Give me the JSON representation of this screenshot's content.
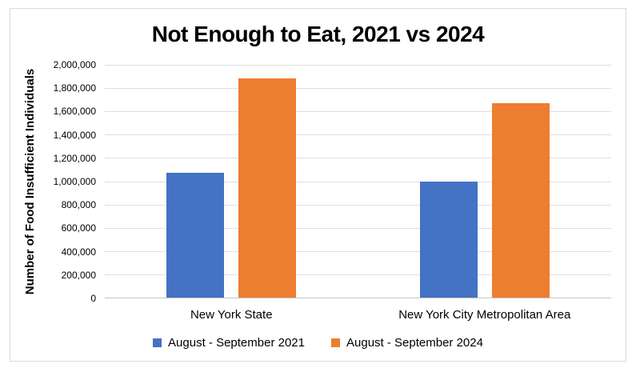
{
  "chart_data": {
    "type": "bar",
    "title": "Not Enough to Eat, 2021 vs 2024",
    "xlabel": "",
    "ylabel": "Number of Food Insufficient Individuals",
    "categories": [
      "New York State",
      "New York City Metropolitan Area"
    ],
    "series": [
      {
        "name": "August - September 2021",
        "color": "#4472C4",
        "values": [
          1070000,
          990000
        ]
      },
      {
        "name": "August - September 2024",
        "color": "#ED7D31",
        "values": [
          1880000,
          1665000
        ]
      }
    ],
    "ylim": [
      0,
      2000000
    ],
    "ytick_step": 200000,
    "ytick_labels": [
      "0",
      "200,000",
      "400,000",
      "600,000",
      "800,000",
      "1,000,000",
      "1,200,000",
      "1,400,000",
      "1,600,000",
      "1,800,000",
      "2,000,000"
    ],
    "grid": true,
    "legend_position": "bottom"
  },
  "colors": {
    "series_2021_blue": "#4472C4",
    "series_2024_orange": "#ED7D31",
    "gridline": "#DEDEDE",
    "axis_line": "#C6C6C6",
    "chart_border": "#D9D9D9",
    "text": "#000000",
    "background": "#FFFFFF"
  }
}
